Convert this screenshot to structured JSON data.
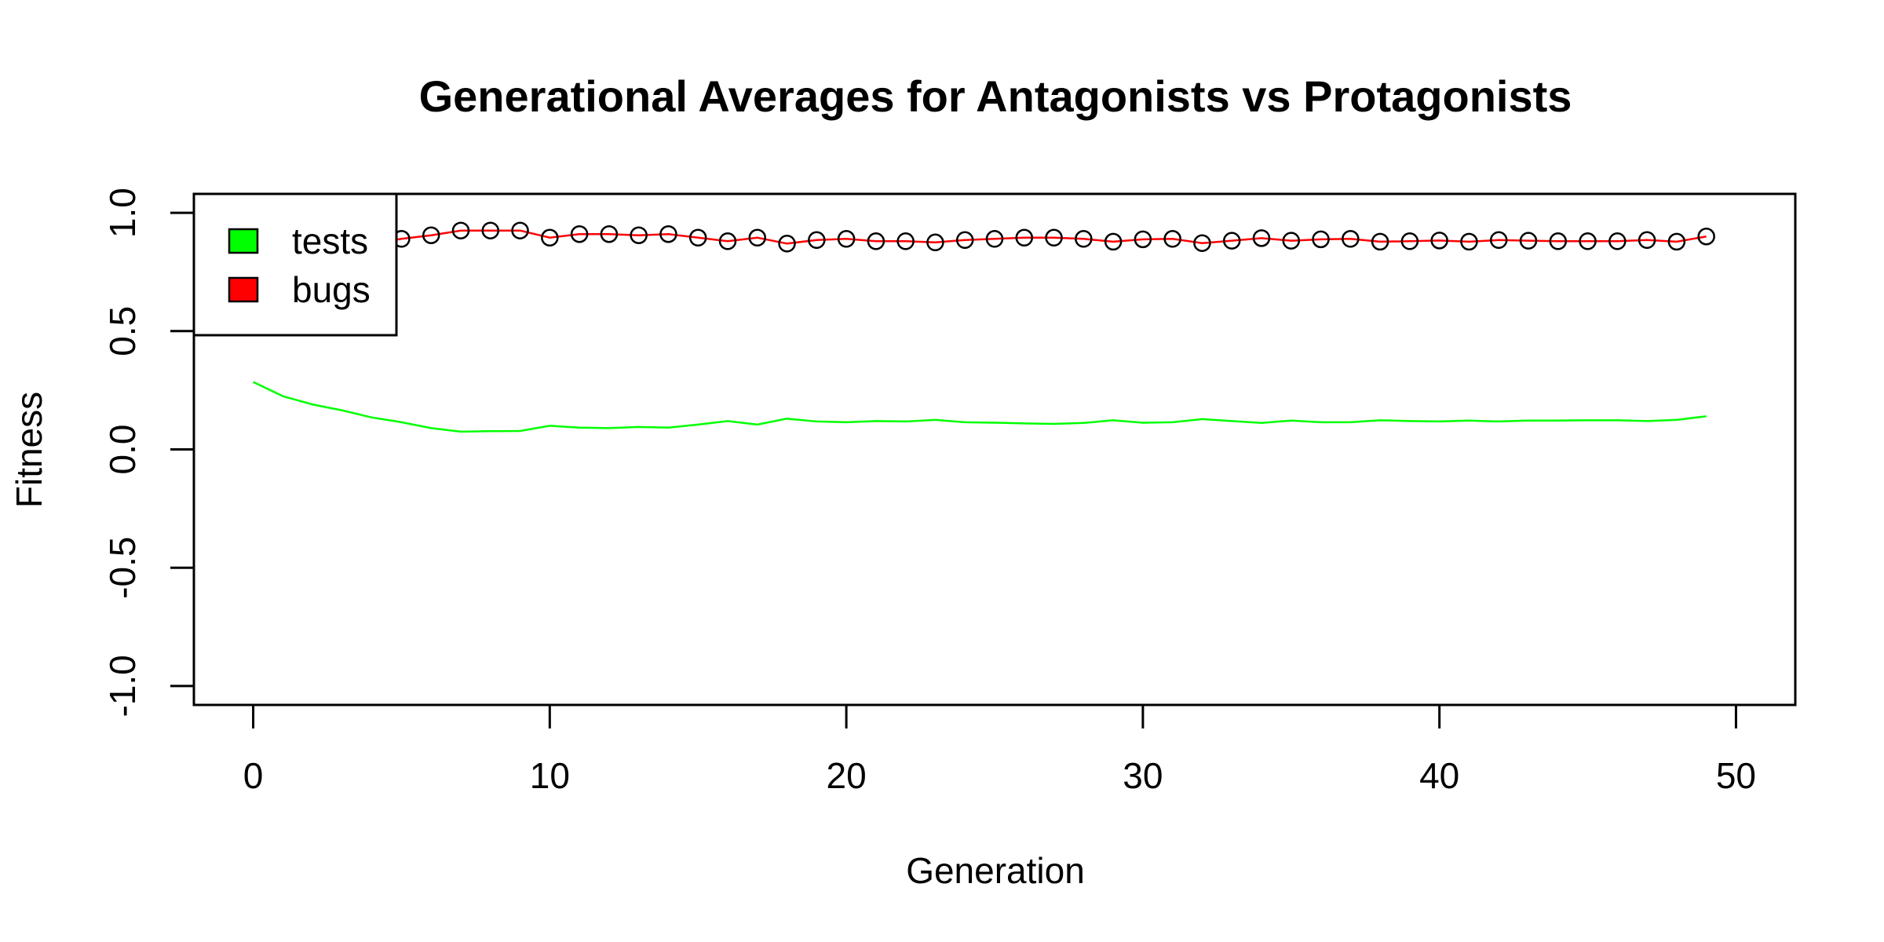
{
  "chart_data": {
    "type": "line",
    "title": "Generational Averages for Antagonists vs Protagonists",
    "xlabel": "Generation",
    "ylabel": "Fitness",
    "xlim": [
      -2,
      52
    ],
    "ylim": [
      -1.08,
      1.08
    ],
    "x_ticks": [
      0,
      10,
      20,
      30,
      40,
      50
    ],
    "x_tick_labels": [
      "0",
      "10",
      "20",
      "30",
      "40",
      "50"
    ],
    "y_ticks": [
      -1.0,
      -0.5,
      0.0,
      0.5,
      1.0
    ],
    "y_tick_labels": [
      "-1.0",
      "-0.5",
      "0.0",
      "0.5",
      "1.0"
    ],
    "grid": false,
    "legend_position": "top-left",
    "x": [
      0,
      1,
      2,
      3,
      4,
      5,
      6,
      7,
      8,
      9,
      10,
      11,
      12,
      13,
      14,
      15,
      16,
      17,
      18,
      19,
      20,
      21,
      22,
      23,
      24,
      25,
      26,
      27,
      28,
      29,
      30,
      31,
      32,
      33,
      34,
      35,
      36,
      37,
      38,
      39,
      40,
      41,
      42,
      43,
      44,
      45,
      46,
      47,
      48,
      49
    ],
    "series": [
      {
        "name": "tests",
        "color": "#00ff00",
        "values": [
          0.285,
          0.225,
          0.19,
          0.165,
          0.135,
          0.115,
          0.09,
          0.075,
          0.077,
          0.078,
          0.1,
          0.092,
          0.09,
          0.095,
          0.092,
          0.105,
          0.12,
          0.105,
          0.13,
          0.118,
          0.115,
          0.12,
          0.118,
          0.125,
          0.115,
          0.113,
          0.11,
          0.108,
          0.112,
          0.123,
          0.113,
          0.115,
          0.128,
          0.12,
          0.112,
          0.122,
          0.115,
          0.115,
          0.123,
          0.12,
          0.118,
          0.122,
          0.118,
          0.122,
          0.122,
          0.123,
          0.123,
          0.12,
          0.125,
          0.14
        ]
      },
      {
        "name": "bugs",
        "color": "#ff0000",
        "values": [
          0.72,
          0.775,
          0.81,
          0.835,
          0.87,
          0.89,
          0.905,
          0.925,
          0.925,
          0.925,
          0.895,
          0.91,
          0.91,
          0.905,
          0.91,
          0.895,
          0.88,
          0.895,
          0.87,
          0.885,
          0.89,
          0.88,
          0.88,
          0.875,
          0.885,
          0.89,
          0.895,
          0.895,
          0.89,
          0.878,
          0.888,
          0.89,
          0.872,
          0.882,
          0.893,
          0.882,
          0.888,
          0.89,
          0.878,
          0.88,
          0.883,
          0.878,
          0.885,
          0.882,
          0.88,
          0.88,
          0.88,
          0.885,
          0.878,
          0.9
        ]
      }
    ],
    "markers": {
      "series": "bugs",
      "color": "#000000",
      "start_index": 5
    }
  }
}
